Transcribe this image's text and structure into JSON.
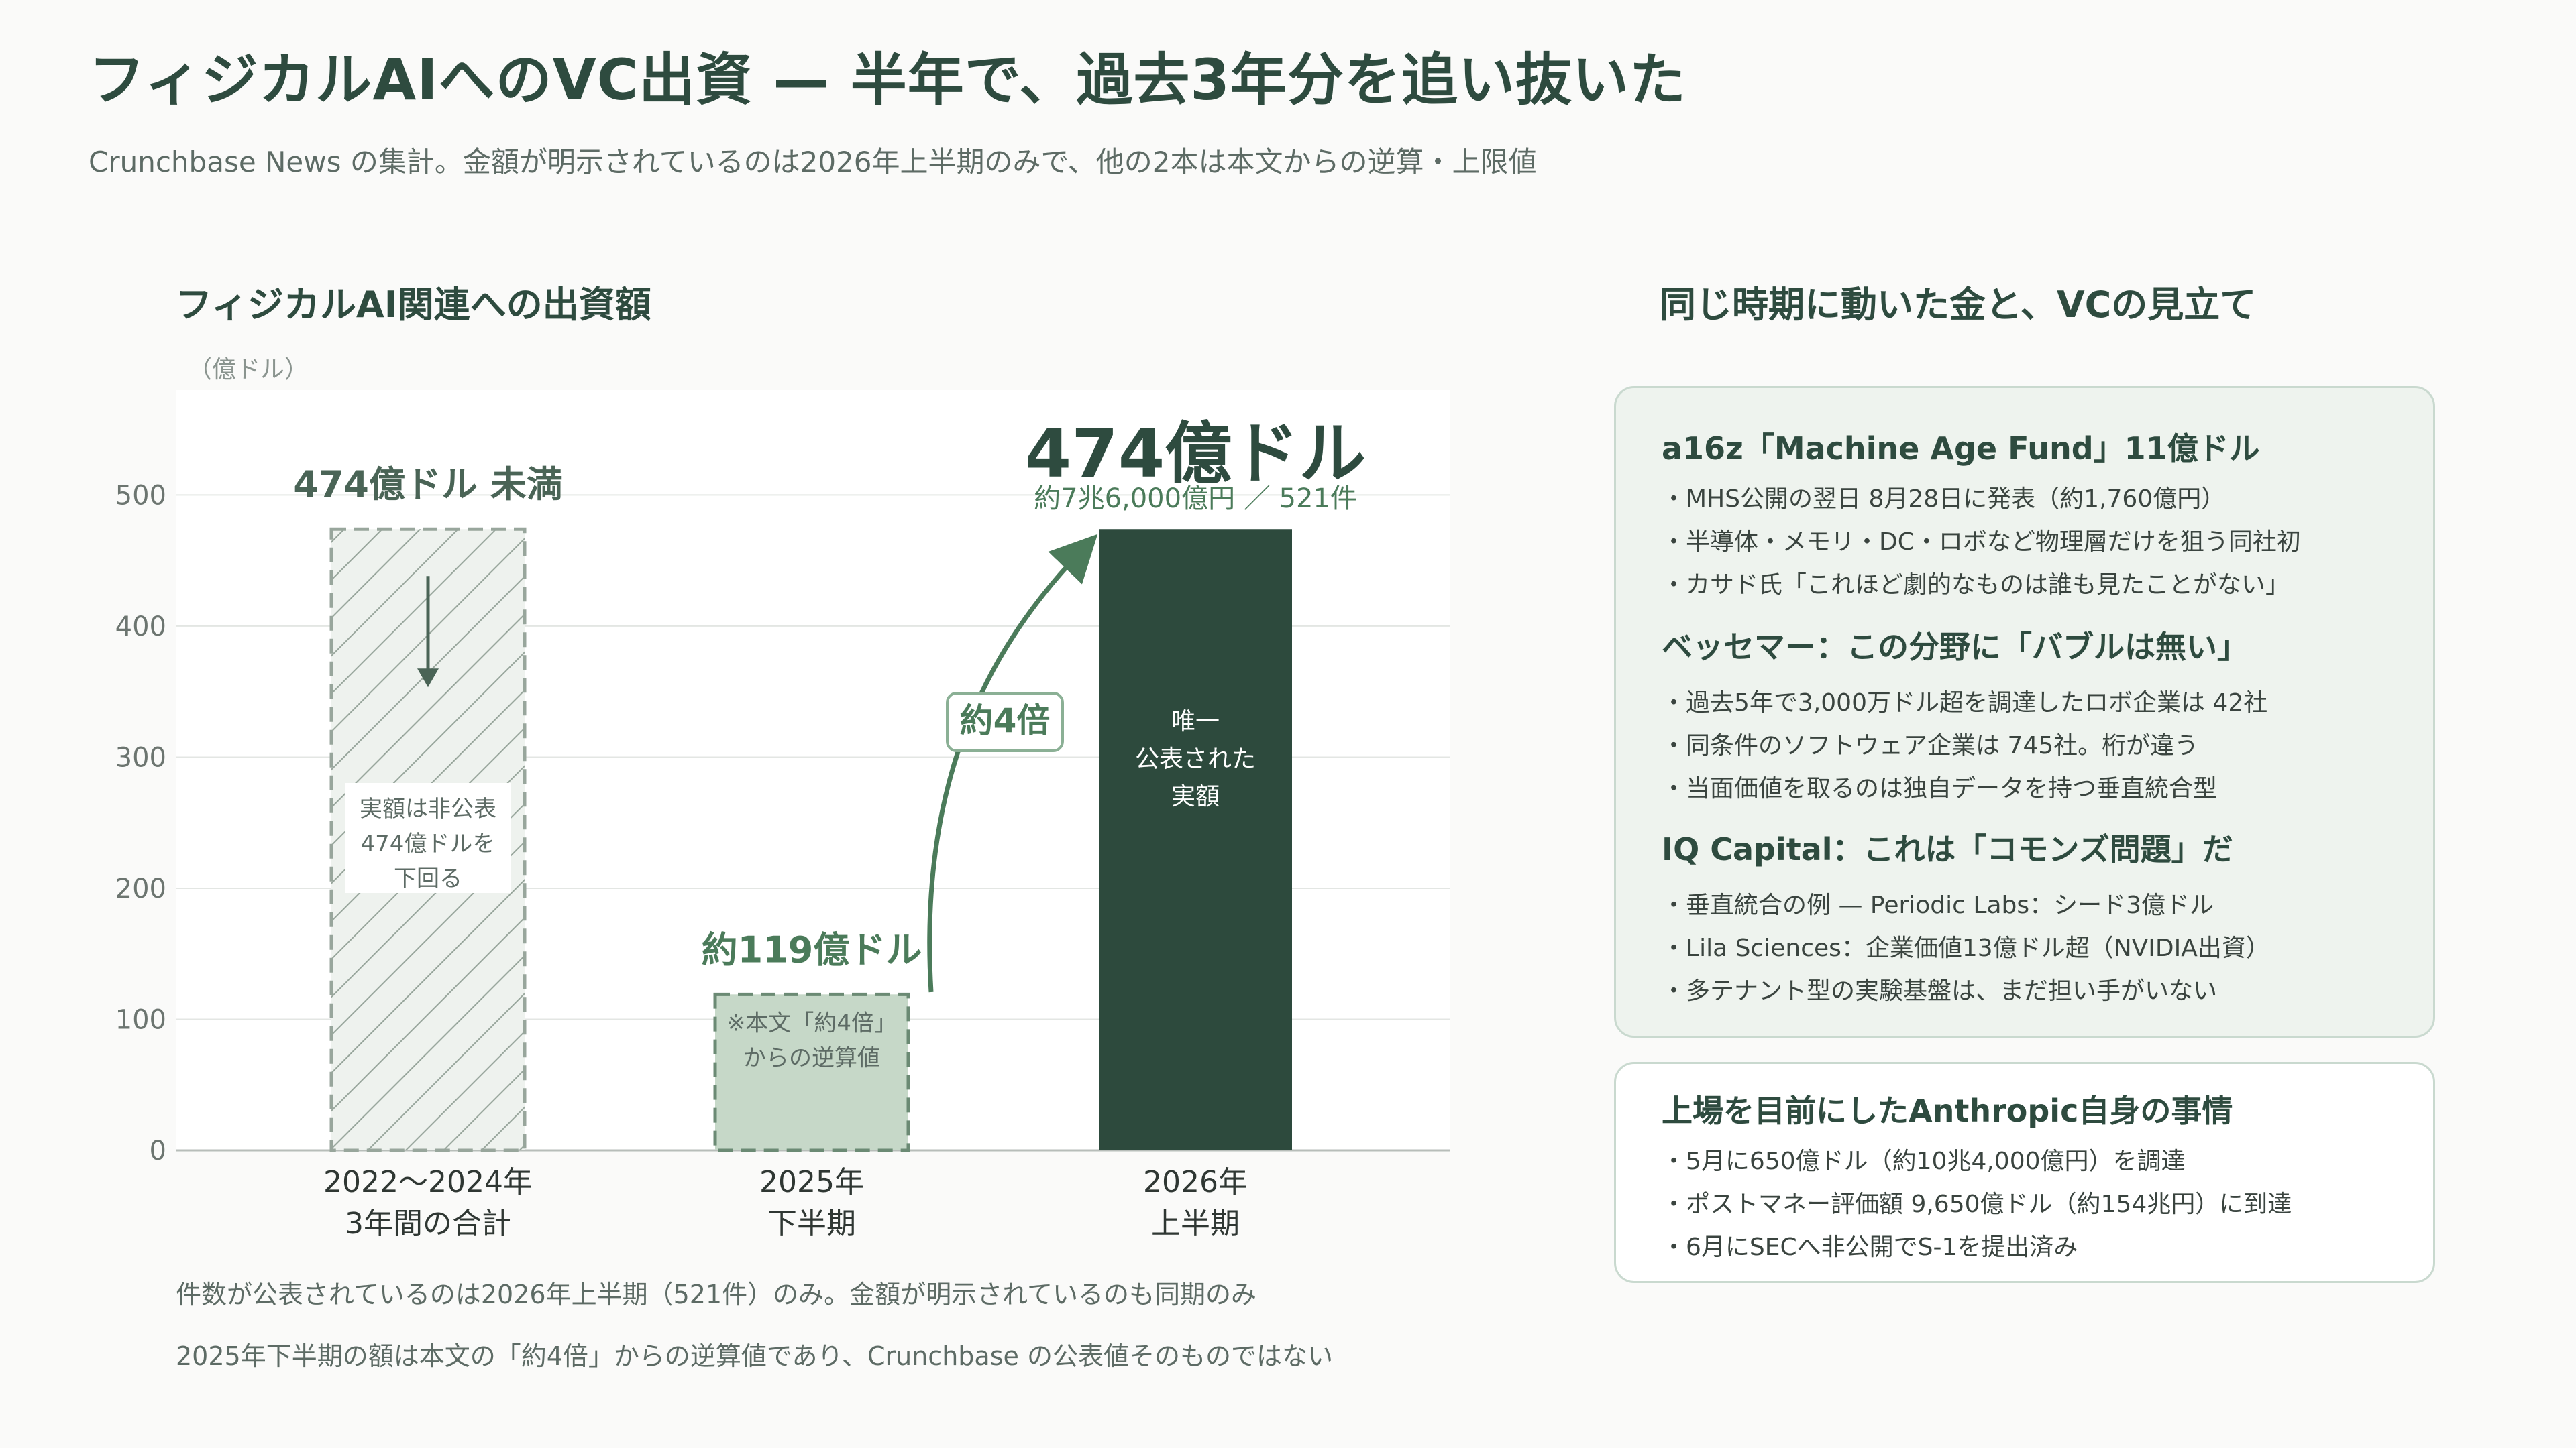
{
  "header": {
    "title": "フィジカルAIへのVC出資 — 半年で、過去3年分を追い抜いた",
    "subtitle": "Crunchbase News の集計。金額が明示されているのは2026年上半期のみで、他の2本は本文からの逆算・上限値"
  },
  "chart_title": "フィジカルAI関連への出資額",
  "chart_data": {
    "type": "bar",
    "title": "フィジカルAI関連への出資額",
    "ylabel": "（億ドル）",
    "ylim": [
      0,
      580
    ],
    "yticks": [
      0,
      100,
      200,
      300,
      400,
      500
    ],
    "categories": [
      {
        "line1": "2022〜2024年",
        "line2": "3年間の合計"
      },
      {
        "line1": "2025年",
        "line2": "下半期"
      },
      {
        "line1": "2026年",
        "line2": "上半期"
      }
    ],
    "values": [
      474,
      119,
      474
    ],
    "bar_labels": {
      "bar0_top": "474億ドル 未満",
      "bar0_note": [
        "実額は非公表",
        "474億ドルを",
        "下回る"
      ],
      "bar1_top": "約119億ドル",
      "bar1_note": [
        "※本文「約4倍」",
        "からの逆算値"
      ],
      "bar2_big": "474億ドル",
      "bar2_sub": "約7兆6,000億円 ／ 521件",
      "bar2_inside": [
        "唯一",
        "公表された",
        "実額"
      ]
    },
    "growth_label": "約4倍",
    "grid": true,
    "colors": {
      "bar0": "#eef2ee",
      "bar0_hatch": "#98a69c",
      "bar1": "#c6d8c8",
      "bar2": "#2d4a3d",
      "accent": "#4b7b5a",
      "grid": "#e3e6e3"
    }
  },
  "notes": [
    "件数が公表されているのは2026年上半期（521件）のみ。金額が明示されているのも同期のみ",
    "2025年下半期の額は本文の「約4倍」からの逆算値であり、Crunchbase の公表値そのものではない"
  ],
  "right_panel": {
    "title": "同じ時期に動いた金と、VCの見立て",
    "box1": {
      "sections": [
        {
          "heading": "a16z「Machine Age Fund」11億ドル",
          "items": [
            "MHS公開の翌日 8月28日に発表（約1,760億円）",
            "半導体・メモリ・DC・ロボなど物理層だけを狙う同社初",
            "カサド氏「これほど劇的なものは誰も見たことがない」"
          ]
        },
        {
          "heading": "ベッセマー：この分野に「バブルは無い」",
          "items": [
            "過去5年で3,000万ドル超を調達したロボ企業は 42社",
            "同条件のソフトウェア企業は 745社。桁が違う",
            "当面価値を取るのは独自データを持つ垂直統合型"
          ]
        },
        {
          "heading": "IQ Capital：これは「コモンズ問題」だ",
          "items": [
            "垂直統合の例 — Periodic Labs：シード3億ドル",
            "Lila Sciences：企業価値13億ドル超（NVIDIA出資）",
            "多テナント型の実験基盤は、まだ担い手がいない"
          ]
        }
      ]
    },
    "box2": {
      "heading": "上場を目前にしたAnthropic自身の事情",
      "items": [
        "5月に650億ドル（約10兆4,000億円）を調達",
        "ポストマネー評価額 9,650億ドル（約154兆円）に到達",
        "6月にSECへ非公開でS-1を提出済み"
      ]
    }
  }
}
